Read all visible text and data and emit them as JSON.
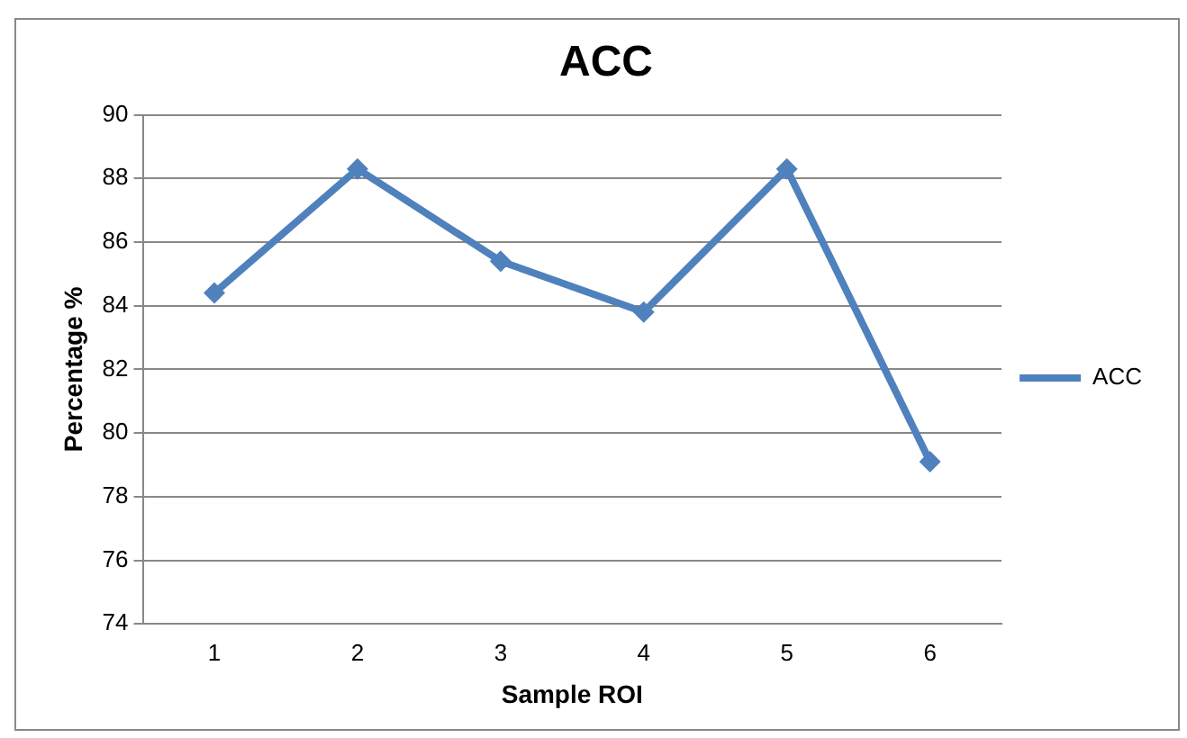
{
  "chart_data": {
    "type": "line",
    "title": "ACC",
    "xlabel": "Sample ROI",
    "ylabel": "Percentage %",
    "categories": [
      "1",
      "2",
      "3",
      "4",
      "5",
      "6"
    ],
    "series": [
      {
        "name": "ACC",
        "color": "#4f81bd",
        "values": [
          84.4,
          88.3,
          85.4,
          83.8,
          88.3,
          79.1
        ]
      }
    ],
    "ylim": [
      74,
      90
    ],
    "yticks": [
      74,
      76,
      78,
      80,
      82,
      84,
      86,
      88,
      90
    ],
    "grid": "y",
    "legend": "right",
    "marker": "diamond",
    "line_style": "solid"
  }
}
